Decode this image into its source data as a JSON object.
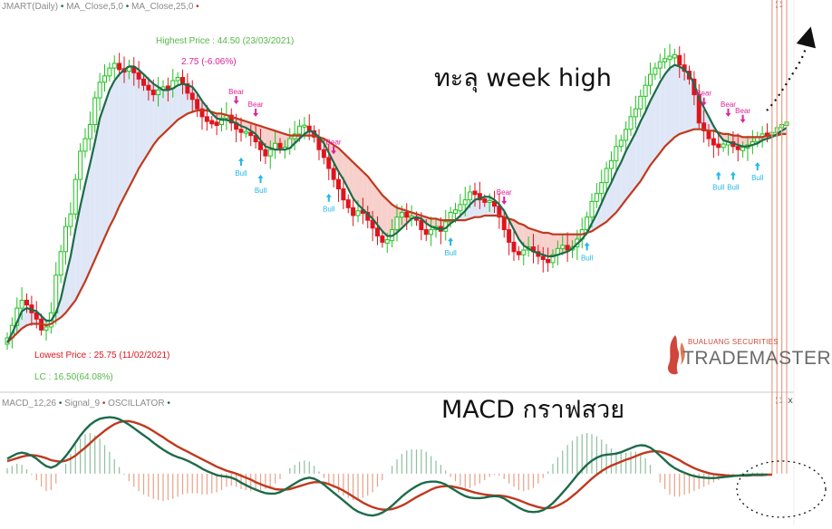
{
  "header": {
    "symbol": "JMART(Daily)",
    "ma5_label": "MA_Close,5,0",
    "ma25_label": "MA_Close,25,0",
    "macd_label": "MACD_12,26",
    "signal_label": "Signal_9",
    "osc_label": "OSCILLATOR"
  },
  "controls": {
    "expand_top": "⛶",
    "expand_bottom": "⛶",
    "close_bottom": "x"
  },
  "annotations": {
    "week_high": "ทะลุ week high",
    "macd_nice": "MACD กราฟสวย",
    "highest": "Highest Price : 44.50 (23/03/2021)",
    "highest_sub": "2.75 (-6.06%)",
    "lowest": "Lowest Price : 25.75 (11/02/2021)",
    "lowest_sub": "LC : 16.50(64.08%)"
  },
  "logo": {
    "sub": "BUALUANG SECURITIES",
    "main": "TRADEMASTER"
  },
  "colors": {
    "up": "#1fc21f",
    "down": "#e0141c",
    "ma5": "#1d6b4a",
    "ma25": "#c0391e",
    "fill_bull": "#dfe7f7",
    "fill_bear": "#f7d0cc",
    "bear_sig": "#e0209a",
    "bull_sig": "#22b8e6",
    "macd": "#1d6b4a",
    "signal": "#c0391e"
  },
  "signals": [
    {
      "type": "bear",
      "label": "Bear",
      "x": 47
    },
    {
      "type": "bear",
      "label": "Bear",
      "x": 51
    },
    {
      "type": "bull",
      "label": "Bull",
      "x": 48
    },
    {
      "type": "bull",
      "label": "Bull",
      "x": 52
    },
    {
      "type": "bear",
      "label": "Bear",
      "x": 67
    },
    {
      "type": "bull",
      "label": "Bull",
      "x": 66
    },
    {
      "type": "bear",
      "label": "Bear",
      "x": 102
    },
    {
      "type": "bull",
      "label": "Bull",
      "x": 91
    },
    {
      "type": "bull",
      "label": "Bull",
      "x": 119
    },
    {
      "type": "bear",
      "label": "Bear",
      "x": 143
    },
    {
      "type": "bear",
      "label": "Bear",
      "x": 148
    },
    {
      "type": "bear",
      "label": "Bear",
      "x": 151
    },
    {
      "type": "bull",
      "label": "Bull",
      "x": 146
    },
    {
      "type": "bull",
      "label": "Bull",
      "x": 149
    },
    {
      "type": "bull",
      "label": "Bull",
      "x": 154
    }
  ],
  "chart_data": [
    {
      "type": "candlestick",
      "title": "JMART(Daily)",
      "series_names": [
        "MA_Close,5,0",
        "MA_Close,25,0"
      ],
      "ylim": [
        23.5,
        47
      ],
      "close": [
        26.5,
        27.3,
        28.4,
        28.9,
        28.6,
        28.1,
        27.7,
        27.0,
        27.2,
        28.1,
        30.5,
        32.0,
        33.6,
        34.4,
        36.6,
        38.4,
        39.2,
        40.1,
        41.8,
        42.8,
        43.2,
        43.7,
        44.0,
        43.6,
        43.5,
        43.8,
        43.4,
        43.0,
        42.6,
        42.3,
        42.0,
        42.3,
        42.5,
        42.4,
        42.9,
        43.1,
        42.7,
        42.1,
        41.7,
        41.1,
        40.6,
        40.3,
        40.2,
        40.1,
        40.5,
        40.7,
        40.2,
        39.8,
        39.6,
        39.6,
        39.4,
        39.0,
        38.5,
        38.1,
        38.5,
        38.9,
        38.6,
        38.6,
        39.2,
        39.5,
        40.0,
        40.0,
        39.7,
        39.3,
        38.5,
        38.0,
        37.3,
        36.6,
        36.0,
        35.3,
        34.8,
        34.3,
        34.6,
        34.5,
        34.0,
        33.5,
        33.0,
        32.6,
        32.7,
        33.4,
        34.2,
        34.5,
        34.2,
        34.2,
        34.0,
        33.4,
        33.1,
        33.4,
        33.6,
        33.3,
        33.9,
        34.5,
        34.6,
        35.0,
        35.3,
        35.8,
        35.7,
        35.3,
        35.2,
        35.2,
        34.9,
        34.2,
        33.4,
        32.6,
        32.0,
        31.8,
        32.1,
        32.3,
        32.0,
        31.7,
        31.5,
        31.3,
        31.8,
        32.2,
        32.4,
        32.1,
        32.3,
        32.8,
        33.4,
        34.2,
        35.2,
        35.7,
        36.4,
        37.3,
        37.8,
        38.7,
        39.1,
        39.8,
        40.6,
        41.1,
        41.9,
        42.6,
        43.3,
        43.7,
        44.1,
        44.3,
        44.4,
        44.5,
        43.9,
        43.5,
        43.0,
        42.0,
        40.2,
        39.7,
        39.2,
        38.8,
        38.7,
        38.8,
        39.0,
        38.7,
        38.5,
        38.6,
        38.8,
        39.0,
        39.3,
        39.5,
        39.4,
        39.6,
        39.9,
        40.1,
        40.2
      ],
      "ma5": [
        26.2,
        26.8,
        27.5,
        28.2,
        28.4,
        28.3,
        28.2,
        27.9,
        27.6,
        27.6,
        28.1,
        29.0,
        30.4,
        31.7,
        33.4,
        34.9,
        36.3,
        37.6,
        39.0,
        40.5,
        41.4,
        42.3,
        42.9,
        43.3,
        43.6,
        43.8,
        43.8,
        43.6,
        43.3,
        43.0,
        42.7,
        42.5,
        42.3,
        42.3,
        42.4,
        42.6,
        42.7,
        42.6,
        42.5,
        42.1,
        41.6,
        41.2,
        40.8,
        40.5,
        40.4,
        40.4,
        40.3,
        40.2,
        40.0,
        39.9,
        39.7,
        39.5,
        39.1,
        38.7,
        38.6,
        38.5,
        38.5,
        38.5,
        38.6,
        38.9,
        39.2,
        39.5,
        39.7,
        39.6,
        39.3,
        38.9,
        38.3,
        37.7,
        37.1,
        36.6,
        36.0,
        35.4,
        35.0,
        34.7,
        34.4,
        34.1,
        33.7,
        33.3,
        33.0,
        33.0,
        33.2,
        33.5,
        33.8,
        34.1,
        34.2,
        34.1,
        33.8,
        33.6,
        33.5,
        33.4,
        33.5,
        33.8,
        34.0,
        34.3,
        34.6,
        35.0,
        35.3,
        35.4,
        35.5,
        35.5,
        35.3,
        35.0,
        34.6,
        34.0,
        33.4,
        32.8,
        32.4,
        32.2,
        32.0,
        31.9,
        31.8,
        31.7,
        31.7,
        31.8,
        31.9,
        32.0,
        32.2,
        32.5,
        32.8,
        33.2,
        33.8,
        34.4,
        35.1,
        35.8,
        36.4,
        37.1,
        37.7,
        38.4,
        39.0,
        39.6,
        40.3,
        40.9,
        41.6,
        42.2,
        42.8,
        43.3,
        43.7,
        43.9,
        43.8,
        43.6,
        43.3,
        42.7,
        41.8,
        41.2,
        40.6,
        40.0,
        39.5,
        39.1,
        39.0,
        38.9,
        38.8,
        38.7,
        38.7,
        38.8,
        38.9,
        39.1,
        39.2,
        39.3,
        39.5,
        39.7,
        39.9
      ],
      "ma25": [
        26.2,
        26.5,
        26.8,
        27.1,
        27.3,
        27.4,
        27.4,
        27.4,
        27.3,
        27.4,
        27.6,
        27.8,
        28.1,
        28.5,
        28.9,
        29.5,
        30.1,
        30.8,
        31.5,
        32.2,
        32.9,
        33.6,
        34.2,
        34.9,
        35.5,
        36.1,
        36.7,
        37.3,
        37.8,
        38.3,
        38.8,
        39.2,
        39.5,
        39.8,
        40.1,
        40.4,
        40.6,
        40.8,
        40.9,
        41.0,
        41.0,
        41.0,
        40.9,
        40.8,
        40.8,
        40.7,
        40.6,
        40.5,
        40.4,
        40.3,
        40.2,
        40.1,
        40.0,
        39.9,
        39.8,
        39.7,
        39.6,
        39.5,
        39.4,
        39.4,
        39.4,
        39.4,
        39.4,
        39.4,
        39.3,
        39.2,
        39.0,
        38.8,
        38.6,
        38.3,
        38.0,
        37.7,
        37.4,
        37.1,
        36.8,
        36.4,
        36.0,
        35.6,
        35.3,
        35.0,
        34.8,
        34.7,
        34.6,
        34.5,
        34.4,
        34.3,
        34.2,
        34.1,
        34.1,
        34.0,
        34.0,
        34.0,
        34.0,
        34.0,
        34.0,
        34.1,
        34.2,
        34.2,
        34.3,
        34.3,
        34.3,
        34.3,
        34.2,
        34.1,
        34.0,
        33.8,
        33.7,
        33.5,
        33.4,
        33.3,
        33.2,
        33.2,
        33.1,
        33.1,
        33.1,
        33.1,
        33.1,
        33.1,
        33.1,
        33.2,
        33.3,
        33.5,
        33.7,
        33.9,
        34.2,
        34.5,
        34.9,
        35.3,
        35.7,
        36.1,
        36.5,
        37.0,
        37.5,
        37.9,
        38.3,
        38.7,
        39.0,
        39.3,
        39.5,
        39.6,
        39.7,
        39.8,
        39.8,
        39.8,
        39.7,
        39.7,
        39.6,
        39.5,
        39.5,
        39.4,
        39.4,
        39.3,
        39.3,
        39.3,
        39.3,
        39.3,
        39.4,
        39.4,
        39.4,
        39.5,
        39.5
      ]
    },
    {
      "type": "line",
      "title": "MACD_12,26",
      "series_names": [
        "MACD_12,26",
        "Signal_9",
        "OSCILLATOR"
      ],
      "ylim": [
        -1.0,
        1.25
      ],
      "macd": [
        0.3,
        0.35,
        0.4,
        0.42,
        0.4,
        0.36,
        0.3,
        0.22,
        0.15,
        0.12,
        0.16,
        0.24,
        0.35,
        0.48,
        0.62,
        0.76,
        0.88,
        0.98,
        1.05,
        1.1,
        1.12,
        1.13,
        1.12,
        1.09,
        1.04,
        0.98,
        0.91,
        0.84,
        0.77,
        0.7,
        0.62,
        0.55,
        0.48,
        0.42,
        0.37,
        0.33,
        0.3,
        0.26,
        0.21,
        0.16,
        0.1,
        0.05,
        0.01,
        -0.03,
        -0.05,
        -0.06,
        -0.08,
        -0.12,
        -0.18,
        -0.23,
        -0.28,
        -0.32,
        -0.36,
        -0.39,
        -0.4,
        -0.4,
        -0.37,
        -0.32,
        -0.26,
        -0.2,
        -0.14,
        -0.1,
        -0.08,
        -0.1,
        -0.15,
        -0.22,
        -0.3,
        -0.38,
        -0.46,
        -0.54,
        -0.62,
        -0.7,
        -0.76,
        -0.8,
        -0.83,
        -0.84,
        -0.82,
        -0.78,
        -0.72,
        -0.64,
        -0.55,
        -0.46,
        -0.38,
        -0.31,
        -0.25,
        -0.2,
        -0.17,
        -0.16,
        -0.16,
        -0.18,
        -0.22,
        -0.28,
        -0.34,
        -0.4,
        -0.45,
        -0.48,
        -0.49,
        -0.49,
        -0.48,
        -0.46,
        -0.45,
        -0.46,
        -0.5,
        -0.56,
        -0.62,
        -0.68,
        -0.73,
        -0.76,
        -0.77,
        -0.76,
        -0.73,
        -0.67,
        -0.59,
        -0.49,
        -0.38,
        -0.27,
        -0.15,
        -0.03,
        0.08,
        0.18,
        0.26,
        0.32,
        0.36,
        0.38,
        0.39,
        0.4,
        0.43,
        0.47,
        0.51,
        0.55,
        0.57,
        0.56,
        0.52,
        0.45,
        0.36,
        0.27,
        0.18,
        0.11,
        0.06,
        0.02,
        -0.02,
        -0.05,
        -0.07,
        -0.08,
        -0.09,
        -0.09,
        -0.08,
        -0.07,
        -0.06,
        -0.05,
        -0.04,
        -0.03,
        -0.03,
        -0.02,
        -0.02,
        -0.02,
        -0.02
      ],
      "signal": [
        0.25,
        0.28,
        0.31,
        0.34,
        0.36,
        0.37,
        0.36,
        0.34,
        0.31,
        0.27,
        0.25,
        0.24,
        0.26,
        0.3,
        0.36,
        0.44,
        0.52,
        0.61,
        0.7,
        0.78,
        0.86,
        0.93,
        0.99,
        1.03,
        1.05,
        1.05,
        1.03,
        1.0,
        0.96,
        0.91,
        0.85,
        0.79,
        0.73,
        0.66,
        0.6,
        0.54,
        0.49,
        0.44,
        0.39,
        0.34,
        0.29,
        0.24,
        0.19,
        0.14,
        0.1,
        0.06,
        0.03,
        0.0,
        -0.04,
        -0.08,
        -0.12,
        -0.17,
        -0.21,
        -0.25,
        -0.28,
        -0.31,
        -0.32,
        -0.32,
        -0.31,
        -0.28,
        -0.25,
        -0.22,
        -0.19,
        -0.17,
        -0.17,
        -0.18,
        -0.21,
        -0.25,
        -0.29,
        -0.34,
        -0.4,
        -0.46,
        -0.52,
        -0.58,
        -0.63,
        -0.67,
        -0.7,
        -0.72,
        -0.72,
        -0.71,
        -0.68,
        -0.64,
        -0.59,
        -0.53,
        -0.47,
        -0.42,
        -0.37,
        -0.32,
        -0.28,
        -0.26,
        -0.25,
        -0.25,
        -0.27,
        -0.29,
        -0.32,
        -0.35,
        -0.38,
        -0.4,
        -0.42,
        -0.43,
        -0.44,
        -0.44,
        -0.45,
        -0.47,
        -0.5,
        -0.53,
        -0.57,
        -0.61,
        -0.64,
        -0.67,
        -0.69,
        -0.69,
        -0.68,
        -0.64,
        -0.59,
        -0.53,
        -0.45,
        -0.37,
        -0.28,
        -0.19,
        -0.1,
        -0.02,
        0.05,
        0.11,
        0.16,
        0.2,
        0.24,
        0.28,
        0.31,
        0.35,
        0.39,
        0.42,
        0.44,
        0.45,
        0.44,
        0.41,
        0.37,
        0.32,
        0.27,
        0.21,
        0.16,
        0.11,
        0.07,
        0.04,
        0.01,
        -0.01,
        -0.02,
        -0.03,
        -0.04,
        -0.04,
        -0.04,
        -0.04,
        -0.04,
        -0.03,
        -0.03,
        -0.03,
        -0.02,
        -0.02
      ]
    }
  ]
}
